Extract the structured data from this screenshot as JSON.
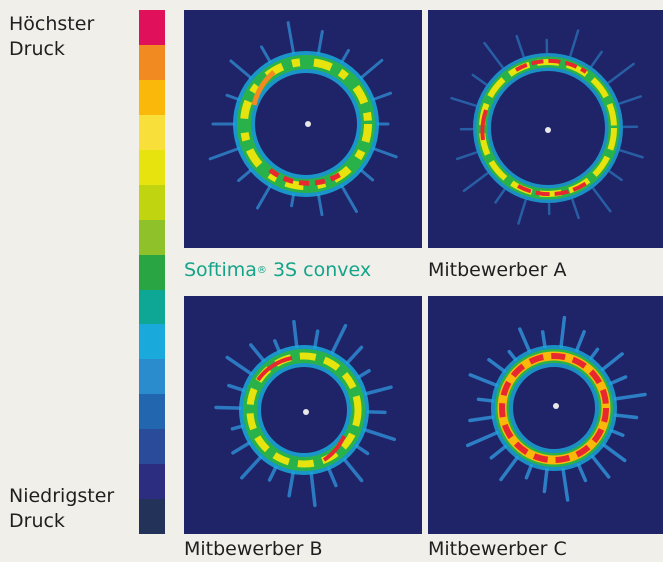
{
  "legend": {
    "top_label_line1": "Höchster",
    "top_label_line2": "Druck",
    "bottom_label_line1": "Niedrigster",
    "bottom_label_line2": "Druck",
    "colors": [
      "#e0105a",
      "#f28a22",
      "#f9b80a",
      "#f9df3a",
      "#e6e30e",
      "#c0d50f",
      "#8fc12b",
      "#29a643",
      "#0ea695",
      "#1aa9db",
      "#2a8ccc",
      "#2266b0",
      "#2a4a9a",
      "#2c2d80",
      "#233258"
    ]
  },
  "panels": [
    {
      "caption_main": "Softima",
      "caption_sup": "®",
      "caption_rest": " 3S convex",
      "caption_color": "#15a489"
    },
    {
      "caption_main": "Mitbewerber A",
      "caption_sup": "",
      "caption_rest": "",
      "caption_color": "#1f1f1f"
    },
    {
      "caption_main": "Mitbewerber B",
      "caption_sup": "",
      "caption_rest": "",
      "caption_color": "#1f1f1f"
    },
    {
      "caption_main": "Mitbewerber C",
      "caption_sup": "",
      "caption_rest": "",
      "caption_color": "#1f1f1f"
    }
  ]
}
